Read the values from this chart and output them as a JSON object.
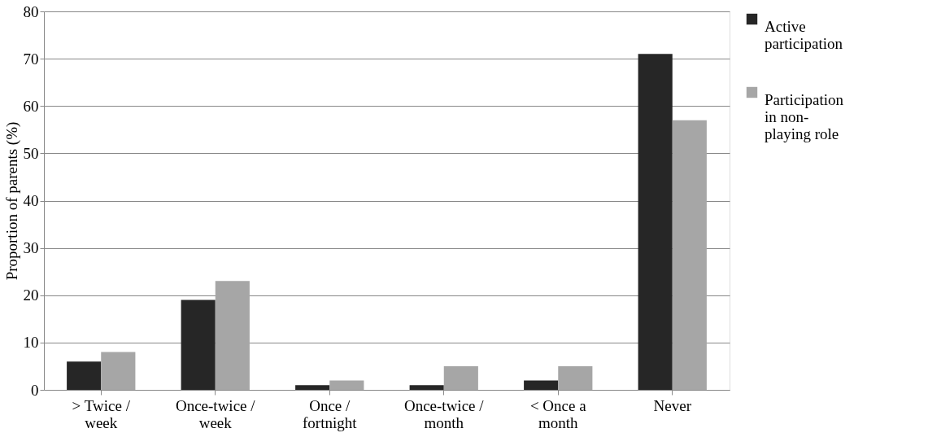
{
  "chart_data": {
    "type": "bar",
    "ylabel": "Proportion of parents (%)",
    "categories": [
      "> Twice /\nweek",
      "Once-twice /\nweek",
      "Once /\nfortnight",
      "Once-twice /\nmonth",
      "< Once a\nmonth",
      "Never"
    ],
    "series": [
      {
        "name": "Active\nparticipation",
        "color": "#262626",
        "values": [
          6,
          19,
          1,
          1,
          2,
          71
        ]
      },
      {
        "name": "Participation\nin non-\nplaying role",
        "color": "#a6a6a6",
        "values": [
          8,
          23,
          2,
          5,
          5,
          57
        ]
      }
    ],
    "ylim": [
      0,
      80
    ],
    "yticks": [
      0,
      10,
      20,
      30,
      40,
      50,
      60,
      70,
      80
    ],
    "grid": "y",
    "legend": "right"
  }
}
